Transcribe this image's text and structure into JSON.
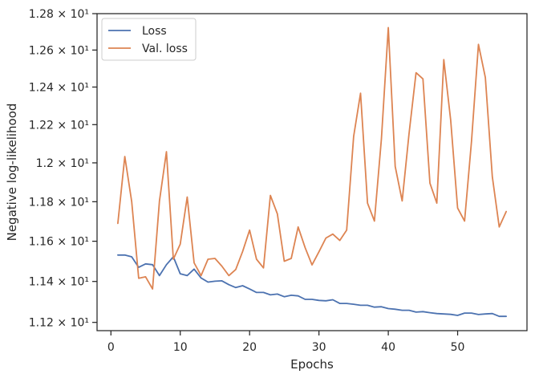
{
  "chart_data": {
    "type": "line",
    "xlabel": "Epochs",
    "ylabel": "Negative log-likelihood",
    "xlim": [
      -2,
      60
    ],
    "ylim": [
      11.16,
      12.8
    ],
    "y_scale": "log",
    "x_ticks": [
      0,
      10,
      20,
      30,
      40,
      50
    ],
    "x_tick_labels": [
      "0",
      "10",
      "20",
      "30",
      "40",
      "50"
    ],
    "y_ticks": [
      11.2,
      11.4,
      11.6,
      11.8,
      12.0,
      12.2,
      12.4,
      12.6,
      12.8
    ],
    "y_tick_labels": [
      "1.12 × 10¹",
      "1.14 × 10¹",
      "1.16 × 10¹",
      "1.18 × 10¹",
      "1.2 × 10¹",
      "1.22 × 10¹",
      "1.24 × 10¹",
      "1.26 × 10¹",
      "1.28 × 10¹"
    ],
    "grid": false,
    "legend_position": "top-left",
    "x": [
      1,
      2,
      3,
      4,
      5,
      6,
      7,
      8,
      9,
      10,
      11,
      12,
      13,
      14,
      15,
      16,
      17,
      18,
      19,
      20,
      21,
      22,
      23,
      24,
      25,
      26,
      27,
      28,
      29,
      30,
      31,
      32,
      33,
      34,
      35,
      36,
      37,
      38,
      39,
      40,
      41,
      42,
      43,
      44,
      45,
      46,
      47,
      48,
      49,
      50,
      51,
      52,
      53,
      54,
      55,
      56,
      57
    ],
    "series": [
      {
        "name": "Loss",
        "color": "#4c72b0",
        "values": [
          11.531,
          11.531,
          11.522,
          11.47,
          11.487,
          11.483,
          11.429,
          11.483,
          11.522,
          11.438,
          11.429,
          11.461,
          11.417,
          11.397,
          11.401,
          11.403,
          11.384,
          11.37,
          11.379,
          11.363,
          11.346,
          11.346,
          11.334,
          11.338,
          11.325,
          11.332,
          11.329,
          11.312,
          11.312,
          11.307,
          11.305,
          11.31,
          11.292,
          11.292,
          11.288,
          11.283,
          11.283,
          11.274,
          11.276,
          11.267,
          11.264,
          11.259,
          11.259,
          11.25,
          11.252,
          11.247,
          11.243,
          11.241,
          11.239,
          11.234,
          11.245,
          11.245,
          11.238,
          11.241,
          11.243,
          11.229,
          11.229
        ]
      },
      {
        "name": "Val. loss",
        "color": "#dd8452",
        "values": [
          11.69,
          12.033,
          11.8,
          11.416,
          11.423,
          11.363,
          11.804,
          12.058,
          11.51,
          11.585,
          11.824,
          11.492,
          11.429,
          11.51,
          11.514,
          11.476,
          11.429,
          11.459,
          11.549,
          11.656,
          11.51,
          11.467,
          11.832,
          11.738,
          11.5,
          11.514,
          11.672,
          11.568,
          11.482,
          11.547,
          11.616,
          11.636,
          11.604,
          11.656,
          12.138,
          12.367,
          11.793,
          11.702,
          12.124,
          12.723,
          11.982,
          11.804,
          12.154,
          12.477,
          12.444,
          11.895,
          11.793,
          12.548,
          12.223,
          11.768,
          11.702,
          12.11,
          12.631,
          12.451,
          11.928,
          11.672,
          11.75
        ]
      }
    ]
  }
}
